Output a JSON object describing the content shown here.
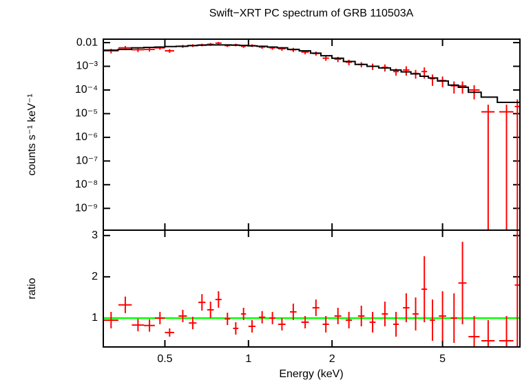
{
  "chart_data": [
    {
      "type": "errorbar",
      "title": "Swift−XRT PC spectrum of GRB 110503A",
      "ylabel": "counts s⁻¹ keV⁻¹",
      "xlog": true,
      "ylog": true,
      "xlim": [
        0.3,
        9.5
      ],
      "ylim": [
        1.2e-10,
        0.014
      ],
      "yticks": [
        0.01,
        {
          "value": 0.001,
          "label": "10⁻³"
        },
        {
          "value": 0.0001,
          "label": "10⁻⁴"
        },
        {
          "value": 1e-05,
          "label": "10⁻⁵"
        },
        {
          "value": 1e-06,
          "label": "10⁻⁶"
        },
        {
          "value": 1e-07,
          "label": "10⁻⁷"
        },
        {
          "value": 1e-08,
          "label": "10⁻⁸"
        },
        {
          "value": 1e-09,
          "label": "10⁻⁹"
        }
      ],
      "color": "#ff0000",
      "x": [
        0.32,
        0.36,
        0.4,
        0.44,
        0.48,
        0.52,
        0.58,
        0.63,
        0.68,
        0.73,
        0.78,
        0.84,
        0.9,
        0.96,
        1.03,
        1.12,
        1.22,
        1.32,
        1.45,
        1.6,
        1.75,
        1.9,
        2.1,
        2.3,
        2.55,
        2.8,
        3.1,
        3.4,
        3.7,
        4.0,
        4.3,
        4.6,
        5.0,
        5.5,
        5.9,
        6.5,
        7.3,
        8.5,
        9.3
      ],
      "xerr": [
        0.02,
        0.02,
        0.02,
        0.02,
        0.02,
        0.02,
        0.02,
        0.02,
        0.02,
        0.02,
        0.02,
        0.02,
        0.02,
        0.02,
        0.03,
        0.03,
        0.03,
        0.04,
        0.04,
        0.05,
        0.05,
        0.05,
        0.06,
        0.06,
        0.07,
        0.07,
        0.08,
        0.08,
        0.1,
        0.1,
        0.1,
        0.1,
        0.15,
        0.15,
        0.2,
        0.3,
        0.4,
        0.5,
        0.2
      ],
      "values": [
        0.0045,
        0.006,
        0.005,
        0.0052,
        0.006,
        0.0045,
        0.007,
        0.0075,
        0.008,
        0.0085,
        0.0095,
        0.0075,
        0.008,
        0.007,
        0.0075,
        0.0065,
        0.006,
        0.0055,
        0.005,
        0.004,
        0.0035,
        0.0022,
        0.002,
        0.0015,
        0.0012,
        0.001,
        0.0009,
        0.0006,
        0.0007,
        0.0005,
        0.0006,
        0.0003,
        0.00025,
        0.00015,
        0.00015,
        0.0001,
        1.2e-05,
        1.2e-05,
        2e-05
      ],
      "yerr": [
        0.001,
        0.0012,
        0.001,
        0.001,
        0.001,
        0.0008,
        0.001,
        0.001,
        0.001,
        0.0012,
        0.0012,
        0.001,
        0.001,
        0.001,
        0.001,
        0.001,
        0.001,
        0.001,
        0.001,
        0.0008,
        0.0007,
        0.0005,
        0.0005,
        0.0004,
        0.0003,
        0.0003,
        0.0003,
        0.0002,
        0.0003,
        0.0002,
        0.0003,
        0.00015,
        0.00012,
        8e-05,
        8e-05,
        6e-05,
        1.2e-05,
        1.2e-05,
        2e-05
      ],
      "model": {
        "color": "#000000",
        "values": [
          0.0048,
          0.0052,
          0.006,
          0.0063,
          0.0065,
          0.0068,
          0.007,
          0.0075,
          0.0078,
          0.008,
          0.008,
          0.008,
          0.0078,
          0.0076,
          0.0073,
          0.007,
          0.0065,
          0.006,
          0.0052,
          0.0045,
          0.0036,
          0.0028,
          0.0022,
          0.0016,
          0.0012,
          0.001,
          0.00085,
          0.0007,
          0.00058,
          0.00048,
          0.00038,
          0.00032,
          0.00024,
          0.00016,
          0.00013,
          8e-05,
          5e-05,
          3e-05,
          3e-05
        ]
      }
    },
    {
      "type": "errorbar",
      "xlabel": "Energy (keV)",
      "ylabel": "ratio",
      "xlog": true,
      "xlim": [
        0.3,
        9.5
      ],
      "ylim": [
        0.3,
        3.13
      ],
      "xticks": [
        0.5,
        1,
        2,
        5
      ],
      "yticks": [
        1,
        2,
        3
      ],
      "color": "#ff0000",
      "ref_line": {
        "value": 1,
        "color": "#00ff00"
      },
      "x": [
        0.32,
        0.36,
        0.4,
        0.44,
        0.48,
        0.52,
        0.58,
        0.63,
        0.68,
        0.73,
        0.78,
        0.84,
        0.9,
        0.96,
        1.03,
        1.12,
        1.22,
        1.32,
        1.45,
        1.6,
        1.75,
        1.9,
        2.1,
        2.3,
        2.55,
        2.8,
        3.1,
        3.4,
        3.7,
        4.0,
        4.3,
        4.6,
        5.0,
        5.5,
        5.9,
        6.5,
        7.3,
        8.5,
        9.3
      ],
      "xerr": [
        0.02,
        0.02,
        0.02,
        0.02,
        0.02,
        0.02,
        0.02,
        0.02,
        0.02,
        0.02,
        0.02,
        0.02,
        0.02,
        0.02,
        0.03,
        0.03,
        0.03,
        0.04,
        0.04,
        0.05,
        0.05,
        0.05,
        0.06,
        0.06,
        0.07,
        0.07,
        0.08,
        0.08,
        0.1,
        0.1,
        0.1,
        0.1,
        0.15,
        0.15,
        0.2,
        0.3,
        0.4,
        0.5,
        0.2
      ],
      "values": [
        0.95,
        1.32,
        0.83,
        0.82,
        1.0,
        0.65,
        1.05,
        0.88,
        1.38,
        1.2,
        1.45,
        0.98,
        0.75,
        1.1,
        0.8,
        1.02,
        1.0,
        0.85,
        1.15,
        0.9,
        1.25,
        0.85,
        1.05,
        0.95,
        1.05,
        0.9,
        1.1,
        0.85,
        1.25,
        1.1,
        1.7,
        0.95,
        1.05,
        1.0,
        1.85,
        0.55,
        0.45,
        0.45,
        1.8
      ],
      "yerr": [
        0.2,
        0.2,
        0.15,
        0.15,
        0.15,
        0.1,
        0.15,
        0.15,
        0.2,
        0.2,
        0.2,
        0.15,
        0.15,
        0.15,
        0.15,
        0.15,
        0.15,
        0.15,
        0.2,
        0.15,
        0.2,
        0.2,
        0.2,
        0.2,
        0.25,
        0.25,
        0.3,
        0.3,
        0.35,
        0.4,
        0.8,
        0.5,
        0.6,
        0.6,
        1.0,
        0.5,
        0.5,
        0.6,
        1.5
      ]
    }
  ]
}
